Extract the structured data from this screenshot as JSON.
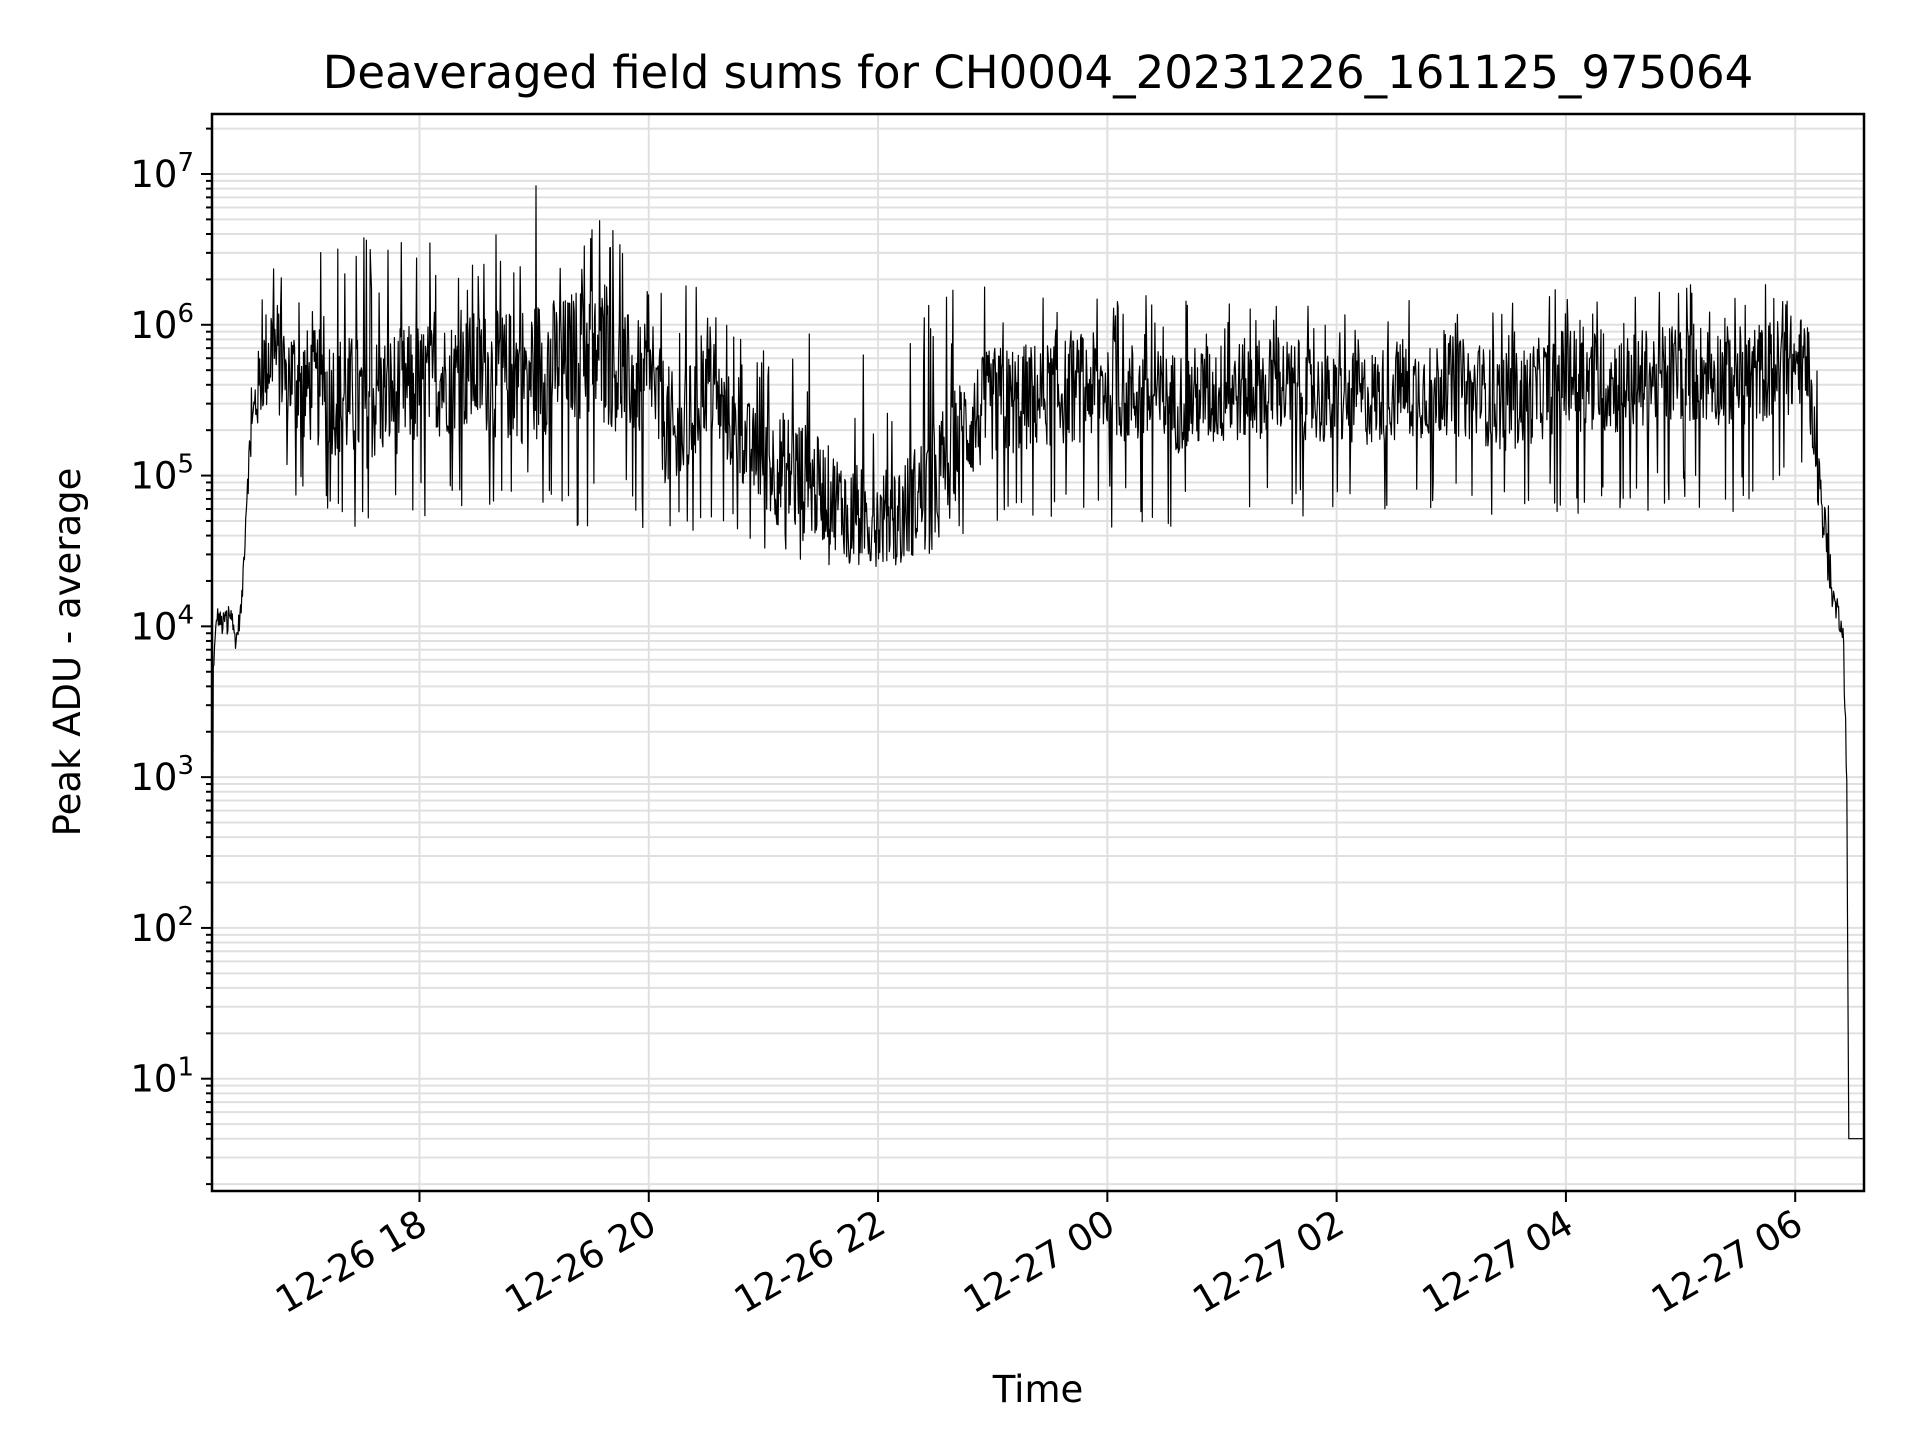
{
  "chart_data": {
    "type": "line",
    "title": "Deaveraged field sums for CH0004_20231226_161125_975064",
    "xlabel": "Time",
    "ylabel": "Peak ADU - average",
    "x_axis": {
      "scale": "time",
      "xlim": [
        "2023-12-26T16:11:25",
        "2023-12-27T06:36:00"
      ],
      "ticks": [
        {
          "value": "2023-12-26T18:00:00",
          "label": "12-26 18"
        },
        {
          "value": "2023-12-26T20:00:00",
          "label": "12-26 20"
        },
        {
          "value": "2023-12-26T22:00:00",
          "label": "12-26 22"
        },
        {
          "value": "2023-12-27T00:00:00",
          "label": "12-27 00"
        },
        {
          "value": "2023-12-27T02:00:00",
          "label": "12-27 02"
        },
        {
          "value": "2023-12-27T04:00:00",
          "label": "12-27 04"
        },
        {
          "value": "2023-12-27T06:00:00",
          "label": "12-27 06"
        }
      ]
    },
    "y_axis": {
      "scale": "log",
      "ylim": [
        1.8,
        25000000
      ],
      "ticks": [
        {
          "value": 10,
          "base": "10",
          "exp": "1"
        },
        {
          "value": 100,
          "base": "10",
          "exp": "2"
        },
        {
          "value": 1000,
          "base": "10",
          "exp": "3"
        },
        {
          "value": 10000,
          "base": "10",
          "exp": "4"
        },
        {
          "value": 100000,
          "base": "10",
          "exp": "5"
        },
        {
          "value": 1000000,
          "base": "10",
          "exp": "6"
        },
        {
          "value": 10000000,
          "base": "10",
          "exp": "7"
        }
      ]
    },
    "grid": true,
    "line_color": "#000000",
    "series": [
      {
        "x": [
          "2023-12-26T16:11:25",
          "2023-12-26T16:12:00",
          "2023-12-26T16:14:00",
          "2023-12-26T16:17:00",
          "2023-12-26T16:20:00",
          "2023-12-26T16:24:00",
          "2023-12-26T16:27:00",
          "2023-12-26T16:30:00",
          "2023-12-26T16:34:00",
          "2023-12-26T16:38:00",
          "2023-12-26T16:42:00",
          "2023-12-26T16:50:00",
          "2023-12-26T17:00:00",
          "2023-12-26T17:15:00",
          "2023-12-26T17:30:00",
          "2023-12-26T17:45:00",
          "2023-12-26T18:00:00",
          "2023-12-26T18:15:00",
          "2023-12-26T18:30:00",
          "2023-12-26T18:45:00",
          "2023-12-26T19:00:00",
          "2023-12-26T19:15:00",
          "2023-12-26T19:30:00",
          "2023-12-26T19:45:00",
          "2023-12-26T20:00:00",
          "2023-12-26T20:15:00",
          "2023-12-26T20:30:00",
          "2023-12-26T20:45:00",
          "2023-12-26T21:00:00",
          "2023-12-26T21:15:00",
          "2023-12-26T21:30:00",
          "2023-12-26T21:45:00",
          "2023-12-26T22:00:00",
          "2023-12-26T22:15:00",
          "2023-12-26T22:30:00",
          "2023-12-26T22:45:00",
          "2023-12-26T23:00:00",
          "2023-12-26T23:30:00",
          "2023-12-27T00:00:00",
          "2023-12-27T00:30:00",
          "2023-12-27T01:00:00",
          "2023-12-27T01:30:00",
          "2023-12-27T02:00:00",
          "2023-12-27T02:30:00",
          "2023-12-27T03:00:00",
          "2023-12-27T03:30:00",
          "2023-12-27T04:00:00",
          "2023-12-27T04:30:00",
          "2023-12-27T05:00:00",
          "2023-12-27T05:30:00",
          "2023-12-27T06:00:00",
          "2023-12-27T06:05:00",
          "2023-12-27T06:10:00",
          "2023-12-27T06:15:00",
          "2023-12-27T06:20:00",
          "2023-12-27T06:25:00",
          "2023-12-27T06:27:00",
          "2023-12-27T06:28:00",
          "2023-12-27T06:30:00",
          "2023-12-27T06:36:00"
        ],
        "y": [
          4,
          5000,
          12000,
          10000,
          13000,
          8000,
          14000,
          100000,
          300000,
          500000,
          700000,
          500000,
          400000,
          350000,
          300000,
          350000,
          400000,
          450000,
          500000,
          450000,
          500000,
          600000,
          700000,
          500000,
          400000,
          150000,
          400000,
          200000,
          120000,
          100000,
          80000,
          60000,
          50000,
          60000,
          100000,
          200000,
          300000,
          350000,
          400000,
          300000,
          350000,
          400000,
          300000,
          350000,
          400000,
          300000,
          450000,
          400000,
          500000,
          450000,
          550000,
          600000,
          200000,
          50000,
          15000,
          10000,
          1000,
          4,
          4,
          4
        ],
        "noise_envelope": {
          "lower": [
            4,
            5000,
            8000,
            6000,
            9000,
            6000,
            8000,
            60000,
            90000,
            100000,
            80000,
            70000,
            60000,
            50000,
            40000,
            50000,
            50000,
            60000,
            60000,
            55000,
            60000,
            50000,
            40000,
            50000,
            40000,
            30000,
            50000,
            40000,
            30000,
            25000,
            25000,
            25000,
            25000,
            25000,
            30000,
            40000,
            40000,
            40000,
            45000,
            45000,
            50000,
            50000,
            50000,
            50000,
            50000,
            50000,
            50000,
            50000,
            60000,
            50000,
            80000,
            100000,
            100000,
            30000,
            10000,
            8000,
            500,
            4,
            4,
            4
          ],
          "upper": [
            4,
            8000,
            15000,
            14000,
            15000,
            12000,
            18000,
            300000,
            1200000,
            2000000,
            8000000,
            2500000,
            3000000,
            3500000,
            4000000,
            3500000,
            4000000,
            3000000,
            3500000,
            5000000,
            10000000,
            3000000,
            6500000,
            4000000,
            2000000,
            3000000,
            1500000,
            900000,
            700000,
            2500000,
            800000,
            700000,
            600000,
            1000000,
            1500000,
            2000000,
            2000000,
            1500000,
            1800000,
            1500000,
            1800000,
            1500000,
            1200000,
            1500000,
            1500000,
            1500000,
            1800000,
            1600000,
            2000000,
            1500000,
            2500000,
            1500000,
            800000,
            200000,
            30000,
            20000,
            2000,
            4,
            4,
            4
          ]
        }
      }
    ]
  }
}
